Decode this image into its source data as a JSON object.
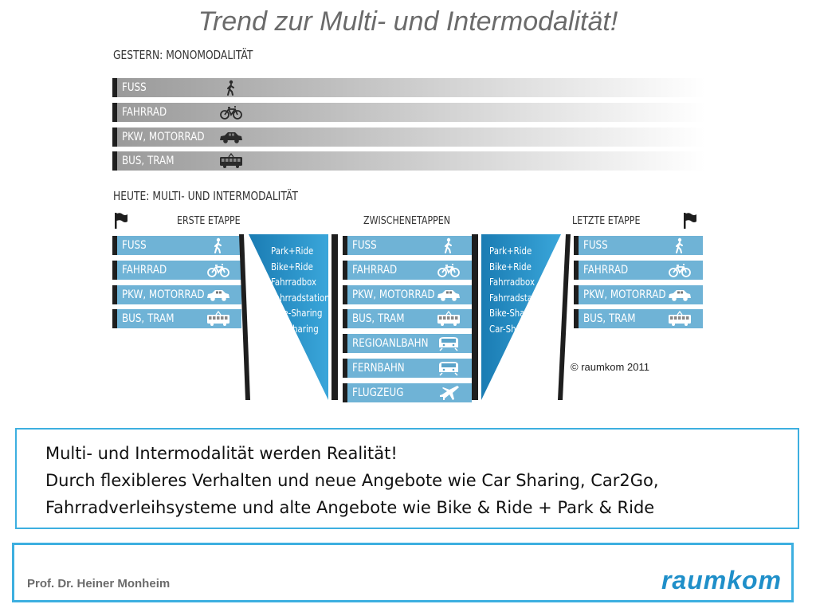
{
  "title": "Trend zur Multi- und Intermodalität!",
  "yesterday": {
    "heading": "GESTERN: MONOMODALITÄT",
    "modes": [
      {
        "label": "FUSS",
        "icon": "walk-icon"
      },
      {
        "label": "FAHRRAD",
        "icon": "bicycle-icon"
      },
      {
        "label": "PKW, MOTORRAD",
        "icon": "car-icon"
      },
      {
        "label": "BUS, TRAM",
        "icon": "bus-icon"
      }
    ]
  },
  "today": {
    "heading": "HEUTE: MULTI- UND INTERMODALITÄT",
    "first_stage": {
      "label": "ERSTE ETAPPE",
      "modes": [
        {
          "label": "FUSS",
          "icon": "walk-icon"
        },
        {
          "label": "FAHRRAD",
          "icon": "bicycle-icon"
        },
        {
          "label": "PKW, MOTORRAD",
          "icon": "car-icon"
        },
        {
          "label": "BUS, TRAM",
          "icon": "bus-icon"
        }
      ]
    },
    "connectors_left": [
      "Park+Ride",
      "Bike+Ride",
      "Fahrradbox",
      "Fahrradstation",
      "Bike-Sharing",
      "Car-Sharing"
    ],
    "intermediate": {
      "label": "ZWISCHENETAPPEN",
      "modes": [
        {
          "label": "FUSS",
          "icon": "walk-icon"
        },
        {
          "label": "FAHRRAD",
          "icon": "bicycle-icon"
        },
        {
          "label": "PKW, MOTORRAD",
          "icon": "car-icon"
        },
        {
          "label": "BUS, TRAM",
          "icon": "bus-icon"
        },
        {
          "label": "REGIOANLBAHN",
          "icon": "train-icon"
        },
        {
          "label": "FERNBAHN",
          "icon": "train-icon"
        },
        {
          "label": "FLUGZEUG",
          "icon": "airplane-icon"
        }
      ]
    },
    "connectors_right": [
      "Park+Ride",
      "Bike+Ride",
      "Fahrradbox",
      "Fahrradstation",
      "Bike-Sharing",
      "Car-Sharing"
    ],
    "last_stage": {
      "label": "LETZTE ETAPPE",
      "modes": [
        {
          "label": "FUSS",
          "icon": "walk-icon"
        },
        {
          "label": "FAHRRAD",
          "icon": "bicycle-icon"
        },
        {
          "label": "PKW, MOTORRAD",
          "icon": "car-icon"
        },
        {
          "label": "BUS, TRAM",
          "icon": "bus-icon"
        }
      ]
    }
  },
  "copyright": "© raumkom 2011",
  "info": {
    "line1": "Multi- und Intermodalität werden Realität!",
    "line2": "Durch flexibleres Verhalten und neue Angebote wie Car Sharing, Car2Go,",
    "line3": "Fahrradverleihsysteme und alte Angebote wie Bike & Ride + Park & Ride"
  },
  "footer": {
    "author": "Prof. Dr. Heiner Monheim",
    "logo": "raumkom"
  },
  "colors": {
    "blue_bar": "#6fb3d6",
    "funnel": "#1f8fc9",
    "frame": "#3dafe0"
  }
}
